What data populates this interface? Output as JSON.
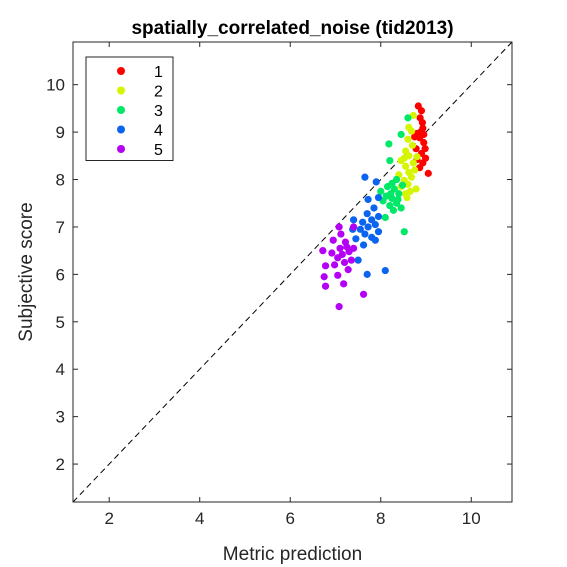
{
  "chart_data": {
    "type": "scatter",
    "title": "spatially_correlated_noise (tid2013)",
    "xlabel": "Metric prediction",
    "ylabel": "Subjective score",
    "xlim": [
      1.2,
      10.9
    ],
    "ylim": [
      1.2,
      10.9
    ],
    "xticks": [
      2,
      4,
      6,
      8,
      10
    ],
    "yticks": [
      2,
      3,
      4,
      5,
      6,
      7,
      8,
      9,
      10
    ],
    "grid": false,
    "legend_position": "top-left",
    "diagonal_reference_line": true,
    "series": [
      {
        "name": "1",
        "color": "#ff0000",
        "points": [
          [
            8.83,
            9.55
          ],
          [
            8.9,
            9.45
          ],
          [
            8.87,
            9.3
          ],
          [
            8.92,
            9.2
          ],
          [
            8.93,
            9.08
          ],
          [
            8.88,
            9.0
          ],
          [
            8.8,
            8.97
          ],
          [
            8.95,
            8.95
          ],
          [
            8.86,
            8.88
          ],
          [
            8.98,
            8.65
          ],
          [
            8.78,
            8.65
          ],
          [
            8.9,
            8.55
          ],
          [
            8.99,
            8.45
          ],
          [
            8.8,
            8.42
          ],
          [
            8.93,
            8.35
          ],
          [
            8.86,
            8.25
          ],
          [
            9.05,
            8.13
          ],
          [
            8.75,
            8.9
          ],
          [
            8.95,
            8.78
          ]
        ]
      },
      {
        "name": "2",
        "color": "#d6f500",
        "points": [
          [
            8.72,
            9.35
          ],
          [
            8.68,
            9.02
          ],
          [
            8.6,
            8.85
          ],
          [
            8.7,
            8.72
          ],
          [
            8.55,
            8.6
          ],
          [
            8.62,
            8.5
          ],
          [
            8.52,
            8.45
          ],
          [
            8.45,
            8.4
          ],
          [
            8.72,
            8.35
          ],
          [
            8.55,
            8.28
          ],
          [
            8.75,
            8.2
          ],
          [
            8.62,
            8.15
          ],
          [
            8.4,
            8.1
          ],
          [
            8.68,
            8.05
          ],
          [
            8.52,
            7.98
          ],
          [
            8.6,
            7.9
          ],
          [
            8.45,
            7.85
          ],
          [
            8.78,
            7.8
          ],
          [
            8.65,
            7.75
          ],
          [
            8.55,
            7.7
          ],
          [
            8.62,
            9.1
          ],
          [
            8.8,
            8.48
          ],
          [
            8.58,
            7.62
          ]
        ]
      },
      {
        "name": "3",
        "color": "#00e868",
        "points": [
          [
            8.6,
            9.3
          ],
          [
            8.45,
            8.95
          ],
          [
            8.18,
            8.75
          ],
          [
            8.2,
            8.4
          ],
          [
            8.35,
            8.0
          ],
          [
            8.25,
            7.92
          ],
          [
            8.15,
            7.85
          ],
          [
            8.48,
            7.88
          ],
          [
            8.3,
            7.8
          ],
          [
            8.0,
            7.75
          ],
          [
            8.4,
            7.7
          ],
          [
            8.12,
            7.65
          ],
          [
            8.25,
            7.6
          ],
          [
            8.05,
            7.55
          ],
          [
            8.35,
            7.5
          ],
          [
            8.2,
            7.45
          ],
          [
            8.45,
            7.4
          ],
          [
            8.28,
            7.35
          ],
          [
            8.1,
            7.2
          ],
          [
            8.52,
            6.9
          ],
          [
            8.22,
            7.7
          ],
          [
            8.38,
            7.58
          ]
        ]
      },
      {
        "name": "4",
        "color": "#0a64f0",
        "points": [
          [
            7.65,
            8.05
          ],
          [
            7.9,
            7.95
          ],
          [
            7.95,
            7.62
          ],
          [
            7.72,
            7.58
          ],
          [
            7.85,
            7.4
          ],
          [
            7.7,
            7.28
          ],
          [
            7.95,
            7.22
          ],
          [
            7.8,
            7.15
          ],
          [
            7.4,
            7.15
          ],
          [
            7.6,
            7.1
          ],
          [
            7.88,
            7.05
          ],
          [
            7.72,
            7.0
          ],
          [
            7.55,
            6.95
          ],
          [
            7.95,
            6.9
          ],
          [
            7.65,
            6.85
          ],
          [
            7.8,
            6.78
          ],
          [
            7.45,
            6.75
          ],
          [
            7.88,
            6.72
          ],
          [
            7.62,
            6.62
          ],
          [
            7.5,
            6.3
          ],
          [
            7.7,
            6.0
          ],
          [
            8.1,
            6.08
          ],
          [
            7.38,
            6.95
          ]
        ]
      },
      {
        "name": "5",
        "color": "#b400f5",
        "points": [
          [
            7.4,
            7.0
          ],
          [
            7.08,
            7.0
          ],
          [
            7.12,
            6.85
          ],
          [
            6.95,
            6.72
          ],
          [
            6.72,
            6.5
          ],
          [
            7.1,
            6.55
          ],
          [
            7.25,
            6.58
          ],
          [
            7.4,
            6.55
          ],
          [
            7.3,
            6.48
          ],
          [
            6.92,
            6.45
          ],
          [
            7.15,
            6.42
          ],
          [
            7.05,
            6.35
          ],
          [
            7.35,
            6.3
          ],
          [
            7.2,
            6.25
          ],
          [
            6.98,
            6.2
          ],
          [
            7.28,
            6.1
          ],
          [
            6.78,
            6.18
          ],
          [
            6.75,
            5.95
          ],
          [
            7.05,
            5.98
          ],
          [
            7.18,
            5.8
          ],
          [
            6.78,
            5.75
          ],
          [
            7.62,
            5.58
          ],
          [
            7.08,
            5.32
          ],
          [
            7.22,
            6.68
          ]
        ]
      }
    ]
  }
}
